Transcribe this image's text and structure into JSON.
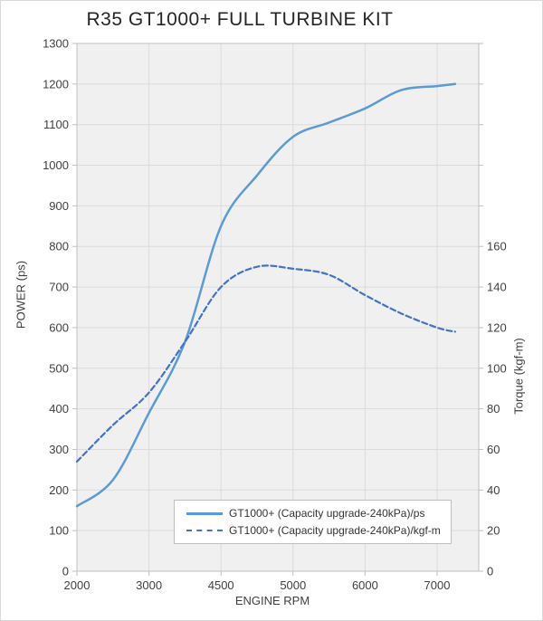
{
  "chart_data": {
    "type": "line",
    "title": "R35 GT1000+ FULL TURBINE KIT",
    "grid": true,
    "legend_position": "inside-bottom-right",
    "colors": {
      "background": "#FFFFFF",
      "plot_background": "#F0F0F0",
      "gridline": "#DBDBDB",
      "axis_line": "#BFBFBF",
      "tick_text": "#404040",
      "power_line": "#5B9BD5",
      "torque_line": "#4472C4"
    },
    "x_axis": {
      "label": "ENGINE RPM",
      "tick_labels": [
        "2000",
        "3000",
        "4500",
        "5000",
        "6000",
        "7000"
      ],
      "tick_values": [
        2000,
        3000,
        4500,
        5000,
        6000,
        7000
      ]
    },
    "y_left": {
      "label": "POWER (ps)",
      "min": 0,
      "max": 1300,
      "ticks": [
        0,
        100,
        200,
        300,
        400,
        500,
        600,
        700,
        800,
        900,
        1000,
        1100,
        1200,
        1300
      ]
    },
    "y_right": {
      "label": "Torque (kgf-m)",
      "ticks": [
        0,
        20,
        40,
        60,
        80,
        100,
        120,
        140,
        160
      ],
      "left_units_per_right_unit": 5
    },
    "series": [
      {
        "name": "GT1000+ (Capacity upgrade-240kPa)/ps",
        "axis": "left",
        "style": "solid",
        "color": "#5B9BD5",
        "points": [
          [
            2000,
            160
          ],
          [
            2500,
            225
          ],
          [
            3000,
            390
          ],
          [
            3750,
            565
          ],
          [
            4500,
            850
          ],
          [
            4750,
            975
          ],
          [
            5000,
            1070
          ],
          [
            5500,
            1105
          ],
          [
            6000,
            1140
          ],
          [
            6500,
            1185
          ],
          [
            7000,
            1195
          ],
          [
            7250,
            1200
          ]
        ]
      },
      {
        "name": "GT1000+ (Capacity upgrade-240kPa)/kgf-m",
        "axis": "right",
        "style": "dashed",
        "color": "#4472C4",
        "points": [
          [
            2000,
            54
          ],
          [
            2500,
            72
          ],
          [
            3000,
            88
          ],
          [
            3750,
            113
          ],
          [
            4500,
            140
          ],
          [
            4750,
            150
          ],
          [
            5000,
            149
          ],
          [
            5500,
            146
          ],
          [
            6000,
            136
          ],
          [
            6500,
            127
          ],
          [
            7000,
            120
          ],
          [
            7250,
            118
          ]
        ]
      }
    ]
  }
}
